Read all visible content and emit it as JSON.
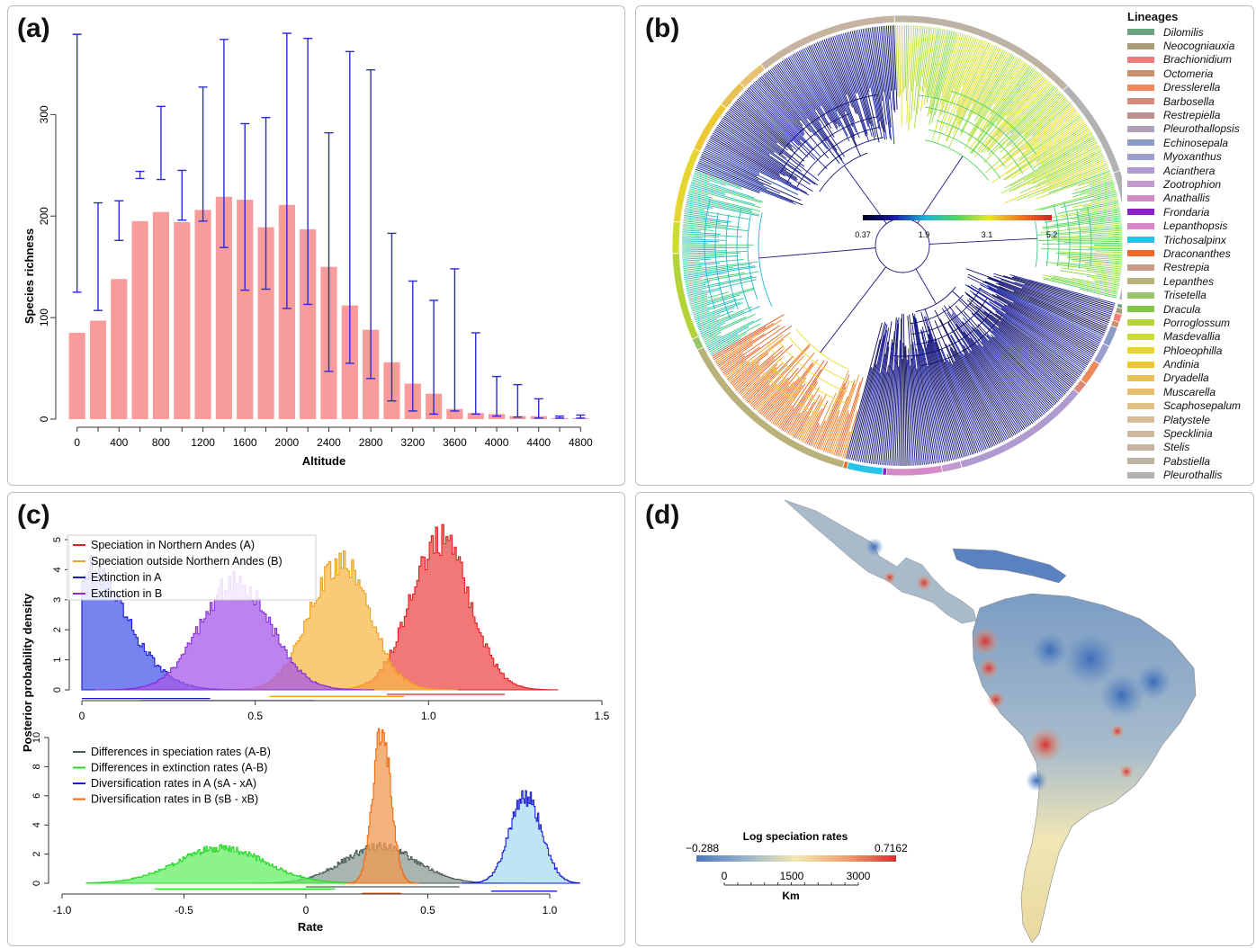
{
  "panels": {
    "a": {
      "label": "(a)"
    },
    "b": {
      "label": "(b)"
    },
    "c": {
      "label": "(c)"
    },
    "d": {
      "label": "(d)"
    }
  },
  "chart_data": [
    {
      "id": "a",
      "type": "bar",
      "xlabel": "Altitude",
      "ylabel": "Species richness",
      "categories": [
        0,
        200,
        400,
        600,
        800,
        1000,
        1200,
        1400,
        1600,
        1800,
        2000,
        2200,
        2400,
        2600,
        2800,
        3000,
        3200,
        3400,
        3600,
        3800,
        4000,
        4200,
        4400,
        4600,
        4800
      ],
      "xtick_labels": [
        "0",
        "400",
        "800",
        "1200",
        "1600",
        "2000",
        "2400",
        "2800",
        "3200",
        "3600",
        "4000",
        "4400",
        "4800"
      ],
      "values": [
        85,
        97,
        138,
        195,
        204,
        194,
        206,
        219,
        216,
        189,
        211,
        187,
        150,
        112,
        88,
        56,
        35,
        25,
        10,
        6,
        5,
        3,
        3,
        1,
        1
      ],
      "error_low": [
        125,
        107,
        176,
        237,
        236,
        196,
        195,
        169,
        127,
        128,
        109,
        113,
        47,
        55,
        40,
        18,
        8,
        5,
        8,
        5,
        3,
        2,
        1,
        1,
        1
      ],
      "error_high": [
        379,
        213,
        215,
        244,
        308,
        245,
        327,
        374,
        291,
        297,
        380,
        375,
        282,
        362,
        344,
        183,
        136,
        117,
        148,
        85,
        42,
        34,
        20,
        3,
        4
      ],
      "ylim": [
        0,
        380
      ],
      "yticks": [
        0,
        100,
        200,
        300
      ],
      "grid": false,
      "colors": {
        "bar": "#f89b9b",
        "error": "#2b2bd6"
      }
    },
    {
      "id": "b",
      "type": "other",
      "description_type": "circular phylogeny",
      "colorbar": {
        "min_label": "0.37",
        "ticks": [
          "0.37",
          "1.9",
          "3.1",
          "5.2"
        ],
        "colors": [
          "#000020",
          "#1a1aa8",
          "#19b6d6",
          "#4fd65a",
          "#e8e430",
          "#f07a20",
          "#d42020"
        ]
      },
      "legend_title": "Lineages",
      "lineages": [
        {
          "name": "Dilomilis",
          "color": "#6aa37e"
        },
        {
          "name": "Neocogniauxia",
          "color": "#a89d78"
        },
        {
          "name": "Brachionidium",
          "color": "#f07c7c"
        },
        {
          "name": "Octomeria",
          "color": "#c8916e"
        },
        {
          "name": "Dresslerella",
          "color": "#ee8a5a"
        },
        {
          "name": "Barbosella",
          "color": "#d88a7a"
        },
        {
          "name": "Restrepiella",
          "color": "#bf8f8f"
        },
        {
          "name": "Pleurothallopsis",
          "color": "#b0a0b8"
        },
        {
          "name": "Echinosepala",
          "color": "#8c9ac8"
        },
        {
          "name": "Myoxanthus",
          "color": "#9c9ed0"
        },
        {
          "name": "Acianthera",
          "color": "#b09ad0"
        },
        {
          "name": "Zootrophion",
          "color": "#c39ad0"
        },
        {
          "name": "Anathallis",
          "color": "#d58ac8"
        },
        {
          "name": "Frondaria",
          "color": "#8a22c8"
        },
        {
          "name": "Lepanthopsis",
          "color": "#d888c8"
        },
        {
          "name": "Trichosalpinx",
          "color": "#27c3e8"
        },
        {
          "name": "Draconanthes",
          "color": "#ee6a28"
        },
        {
          "name": "Restrepia",
          "color": "#c89b8b"
        },
        {
          "name": "Lepanthes",
          "color": "#b8b27a"
        },
        {
          "name": "Trisetella",
          "color": "#98c46a"
        },
        {
          "name": "Dracula",
          "color": "#84c44a"
        },
        {
          "name": "Porroglossum",
          "color": "#b2d43a"
        },
        {
          "name": "Masdevallia",
          "color": "#cadd30"
        },
        {
          "name": "Phloeophilla",
          "color": "#e6d430"
        },
        {
          "name": "Andinia",
          "color": "#ecc835"
        },
        {
          "name": "Dryadella",
          "color": "#e8c055"
        },
        {
          "name": "Muscarella",
          "color": "#e8c070"
        },
        {
          "name": "Scaphosepalum",
          "color": "#e2c08a"
        },
        {
          "name": "Platystele",
          "color": "#d6bc98"
        },
        {
          "name": "Specklinia",
          "color": "#cdb89c"
        },
        {
          "name": "Stelis",
          "color": "#c6b4a0"
        },
        {
          "name": "Pabstiella",
          "color": "#bdb2a4"
        },
        {
          "name": "Pleurothallis",
          "color": "#b2b2b2"
        }
      ]
    },
    {
      "id": "c-top",
      "type": "area",
      "ylabel": "Posterior probability density",
      "xlim": [
        0,
        1.5
      ],
      "xticks": [
        "0",
        "0.5",
        "1.0",
        "1.5"
      ],
      "ylim": [
        0,
        5
      ],
      "yticks": [
        "0",
        "1",
        "2",
        "3",
        "4",
        "5"
      ],
      "legend_position": "top-left",
      "series": [
        {
          "name": "Speciation in Northern Andes (A)",
          "color": "#e02020",
          "fill": "#ee4a4a",
          "mean": 1.03,
          "sd": 0.085,
          "peak": 5.0,
          "hpd": [
            0.88,
            1.22
          ]
        },
        {
          "name": "Speciation outside Northern Andes (B)",
          "color": "#f0a020",
          "fill": "#f7b84a",
          "mean": 0.74,
          "sd": 0.085,
          "peak": 4.3,
          "hpd": [
            0.54,
            0.93
          ]
        },
        {
          "name": "Extinction in A",
          "color": "#1a1ad0",
          "fill": "#4a5ae8",
          "mean": 0.0,
          "sd": 0.12,
          "peak": 4.1,
          "hpd": [
            0.0,
            0.37
          ]
        },
        {
          "name": "Extinction in B",
          "color": "#8a2ad8",
          "fill": "#a65ae8",
          "mean": 0.44,
          "sd": 0.1,
          "peak": 3.6,
          "hpd": [
            0.17,
            0.67
          ]
        }
      ]
    },
    {
      "id": "c-bottom",
      "type": "area",
      "xlabel": "Rate",
      "xlim": [
        -1.0,
        1.0
      ],
      "xticks": [
        "-1.0",
        "-0.5",
        "0",
        "0.5",
        "1.0"
      ],
      "ylim": [
        0,
        10
      ],
      "yticks": [
        "0",
        "2",
        "4",
        "6",
        "8",
        "10"
      ],
      "legend_position": "top-left",
      "series": [
        {
          "name": "Differences in speciation rates (A-B)",
          "color": "#4a5a55",
          "fill": "#8e9c96",
          "mean": 0.3,
          "sd": 0.15,
          "peak": 2.5,
          "hpd": [
            0.0,
            0.63
          ]
        },
        {
          "name": "Differences in extinction rates (A-B)",
          "color": "#2ad82a",
          "fill": "#66ee66",
          "mean": -0.35,
          "sd": 0.18,
          "peak": 2.4,
          "hpd": [
            -0.62,
            0.12
          ]
        },
        {
          "name": "Diversification rates in A (sA - xA)",
          "color": "#1a1ad0",
          "fill": "#a8dcf0",
          "mean": 0.9,
          "sd": 0.065,
          "peak": 6.0,
          "hpd": [
            0.76,
            1.03
          ]
        },
        {
          "name": "Diversification rates in B (sB - xB)",
          "color": "#f06a10",
          "fill": "#f09a50",
          "mean": 0.31,
          "sd": 0.037,
          "peak": 10.5,
          "hpd": [
            0.23,
            0.39
          ]
        }
      ]
    },
    {
      "id": "d",
      "type": "heatmap",
      "legend_title": "Log speciation rates",
      "min_label": "−0.288",
      "max_label": "0.7162",
      "scale_ticks": [
        "0",
        "1500",
        "3000"
      ],
      "scale_unit": "Km",
      "colors": [
        "#4a78c0",
        "#9ab4cc",
        "#f2e8b0",
        "#f0a070",
        "#d83030"
      ]
    }
  ]
}
